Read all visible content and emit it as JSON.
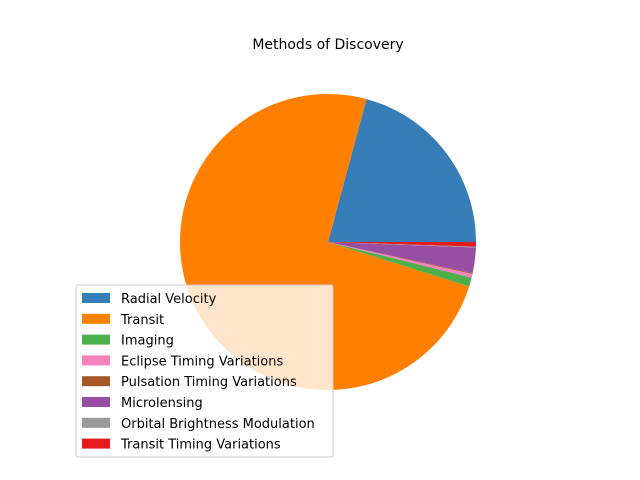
{
  "chart_data": {
    "type": "pie",
    "title": "Methods of Discovery",
    "start_angle_deg": 0,
    "direction": "counterclockwise",
    "legend_position": "lower-left",
    "slices": [
      {
        "label": "Radial Velocity",
        "value": 21.0,
        "color": "#377eb8"
      },
      {
        "label": "Transit",
        "value": 75.0,
        "color": "#ff7f00"
      },
      {
        "label": "Imaging",
        "value": 1.0,
        "color": "#4daf4a"
      },
      {
        "label": "Eclipse Timing Variations",
        "value": 0.4,
        "color": "#f781bf"
      },
      {
        "label": "Pulsation Timing Variations",
        "value": 0.1,
        "color": "#a65628"
      },
      {
        "label": "Microlensing",
        "value": 2.8,
        "color": "#984ea3"
      },
      {
        "label": "Orbital Brightness Modulation",
        "value": 0.1,
        "color": "#999999"
      },
      {
        "label": "Transit Timing Variations",
        "value": 0.5,
        "color": "#e41a1c"
      }
    ]
  }
}
